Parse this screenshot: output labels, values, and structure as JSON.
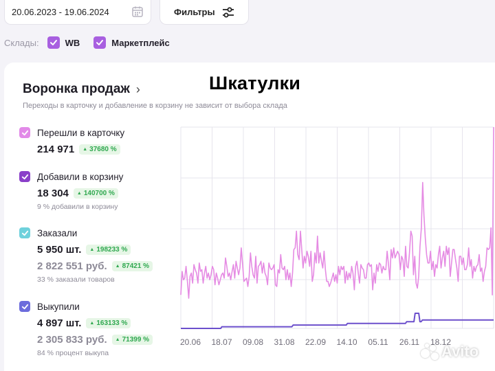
{
  "filters": {
    "date_range": "20.06.2023 - 19.06.2024",
    "filters_button": "Фильтры",
    "warehouses_label": "Склады:",
    "warehouses": [
      "WB",
      "Маркетплейс"
    ]
  },
  "overlay_title": "Шкатулки",
  "funnel": {
    "title": "Воронка продаж",
    "subtitle": "Переходы в карточку и добавление в корзину не зависит от выбора склада",
    "metrics": [
      {
        "label": "Перешли в карточку",
        "color": "#e28ae8",
        "value": "214 971",
        "change": "37680 %"
      },
      {
        "label": "Добавили в корзину",
        "color": "#8a3fc9",
        "value": "18 304",
        "change": "140700 %",
        "note": "9 % добавили в корзину"
      },
      {
        "label": "Заказали",
        "color": "#6fd1dc",
        "value": "5 950 шт.",
        "change": "198233 %",
        "value2": "2 822 551 руб.",
        "change2": "87421 %",
        "note": "33 % заказали товаров"
      },
      {
        "label": "Выкупили",
        "color": "#6c6cdc",
        "value": "4 897 шт.",
        "change": "163133 %",
        "value2": "2 305 833 руб.",
        "change2": "71399 %",
        "note": "84 % процент выкупа"
      }
    ]
  },
  "chart_data": {
    "type": "line",
    "x_ticks": [
      "20.06",
      "18.07",
      "09.08",
      "31.08",
      "22.09",
      "14.10",
      "05.11",
      "26.11",
      "18.12"
    ],
    "grid": true,
    "series": [
      {
        "color": "#e58be3",
        "values": [
          20,
          34,
          29,
          30,
          37,
          28,
          18,
          31,
          33,
          27,
          38,
          35,
          33,
          27,
          39,
          34,
          35,
          27,
          33,
          37,
          30,
          33,
          29,
          32,
          37,
          35,
          26,
          33,
          30,
          26,
          29,
          32,
          33,
          30,
          42,
          37,
          31,
          33,
          29,
          34,
          38,
          30,
          40,
          36,
          32,
          36,
          48,
          38,
          28,
          29,
          30,
          25,
          31,
          45,
          37,
          32,
          30,
          43,
          27,
          37,
          38,
          40,
          33,
          39,
          33,
          31,
          26,
          39,
          36,
          35,
          36,
          38,
          26,
          25,
          35,
          33,
          44,
          36,
          35,
          37,
          29,
          35,
          29,
          33,
          25,
          33,
          47,
          48,
          58,
          44,
          41,
          58,
          47,
          36,
          43,
          39,
          46,
          43,
          37,
          46,
          28,
          32,
          45,
          39,
          55,
          39,
          45,
          40,
          36,
          46,
          35,
          28,
          28,
          25,
          27,
          30,
          33,
          28,
          32,
          27,
          37,
          32,
          37,
          35,
          37,
          27,
          34,
          29,
          33,
          30,
          37,
          33,
          23,
          37,
          40,
          33,
          27,
          38,
          36,
          35,
          30,
          30,
          38,
          39,
          37,
          38,
          23,
          33,
          27,
          38,
          34,
          39,
          38,
          33,
          37,
          35,
          35,
          46,
          38,
          29,
          47,
          42,
          48,
          42,
          44,
          46,
          44,
          35,
          43,
          41,
          31,
          49,
          37,
          36,
          45,
          58,
          55,
          32,
          43,
          27,
          24,
          31,
          49,
          60,
          87,
          67,
          54,
          44,
          39,
          39,
          46,
          35,
          40,
          31,
          38,
          36,
          44,
          49,
          36,
          42,
          46,
          37,
          49,
          44,
          48,
          31,
          39,
          47,
          47,
          41,
          36,
          28,
          43,
          43,
          38,
          42,
          35,
          35,
          38,
          48,
          37,
          41,
          30,
          37,
          34,
          37,
          38,
          44,
          34,
          36,
          28,
          34,
          37,
          48,
          47,
          48,
          60,
          20,
          120
        ]
      },
      {
        "color": "#6b4fcc",
        "values": [
          0,
          0,
          0,
          0,
          0,
          0,
          0,
          0,
          0,
          0,
          0,
          0,
          0,
          0,
          0,
          0,
          0,
          0,
          0,
          0,
          0,
          0,
          0,
          0,
          0,
          0,
          0,
          0,
          0,
          0,
          0,
          0,
          0,
          0,
          1,
          1,
          1,
          1,
          1,
          1,
          1,
          1,
          1,
          1,
          1,
          1,
          1,
          1,
          1,
          1,
          1,
          1,
          1,
          1,
          1,
          1,
          1,
          1,
          1,
          1,
          1,
          1,
          1,
          1,
          1,
          1,
          1,
          1,
          1,
          1,
          1,
          1,
          1,
          1,
          1,
          1,
          1,
          1,
          1,
          1,
          1,
          1,
          1,
          1,
          1,
          1,
          1,
          1,
          1,
          1,
          1,
          1,
          1,
          2,
          2,
          2,
          2,
          2,
          2,
          2,
          2,
          2,
          2,
          2,
          2,
          2,
          2,
          2,
          2,
          2,
          2,
          2,
          2,
          2,
          2,
          2,
          2,
          2,
          2,
          2,
          2,
          2,
          2,
          2,
          2,
          2,
          2,
          2,
          2,
          2,
          2,
          2,
          2,
          2,
          2,
          2,
          2,
          2,
          3,
          3,
          3,
          3,
          3,
          3,
          3,
          3,
          3,
          3,
          3,
          3,
          3,
          3,
          3,
          3,
          3,
          3,
          3,
          3,
          3,
          3,
          3,
          3,
          3,
          3,
          3,
          3,
          3,
          3,
          3,
          3,
          3,
          3,
          3,
          3,
          3,
          3,
          3,
          3,
          3,
          3,
          3,
          3,
          3,
          3,
          3,
          3,
          3,
          4,
          4,
          4,
          4,
          4,
          4,
          4,
          9,
          9,
          9,
          9,
          4,
          4,
          5,
          5,
          5,
          5,
          5,
          5,
          5,
          5,
          5,
          5,
          5,
          5,
          5,
          5,
          5,
          5,
          5,
          5,
          5,
          5,
          5,
          5,
          5,
          5,
          5,
          5,
          5,
          5,
          5,
          5,
          5,
          5,
          5,
          5,
          5,
          5,
          5,
          5,
          5,
          5,
          5,
          5,
          5,
          5,
          5,
          5,
          5,
          5,
          5,
          5,
          5,
          5,
          5,
          5,
          5,
          5,
          5,
          5,
          5,
          5
        ]
      }
    ]
  },
  "watermark": "Avito"
}
